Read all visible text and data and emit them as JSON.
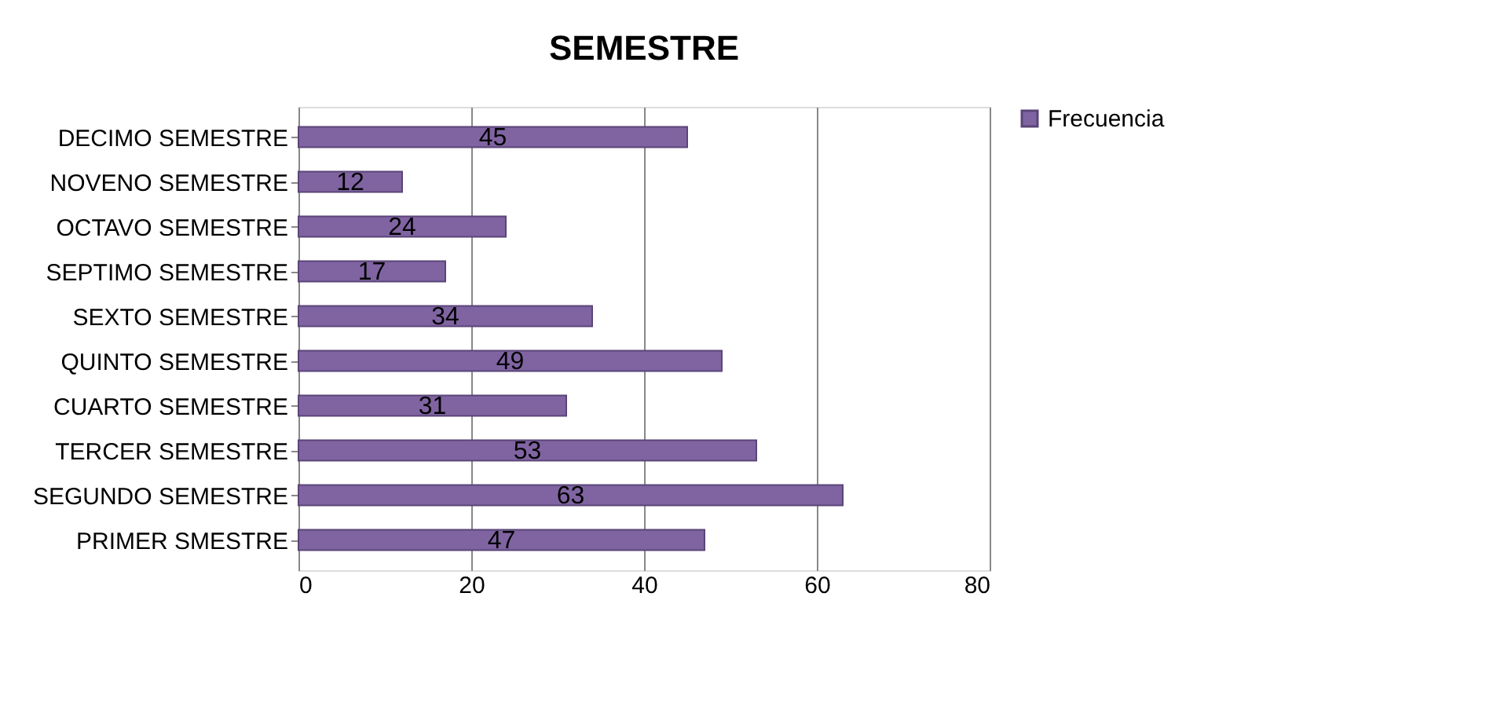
{
  "chart_data": {
    "type": "bar",
    "orientation": "horizontal",
    "title": "SEMESTRE",
    "categories": [
      "DECIMO SEMESTRE",
      "NOVENO SEMESTRE",
      "OCTAVO SEMESTRE",
      "SEPTIMO SEMESTRE",
      "SEXTO SEMESTRE",
      "QUINTO SEMESTRE",
      "CUARTO SEMESTRE",
      "TERCER SEMESTRE",
      "SEGUNDO SEMESTRE",
      "PRIMER SMESTRE"
    ],
    "series": [
      {
        "name": "Frecuencia",
        "color": "#8064a2",
        "values": [
          45,
          12,
          24,
          17,
          34,
          49,
          31,
          53,
          63,
          47
        ]
      }
    ],
    "xlim": [
      0,
      80
    ],
    "xticks": [
      0,
      20,
      40,
      60,
      80
    ],
    "grid": "x",
    "legend": "right",
    "data_labels": true
  }
}
